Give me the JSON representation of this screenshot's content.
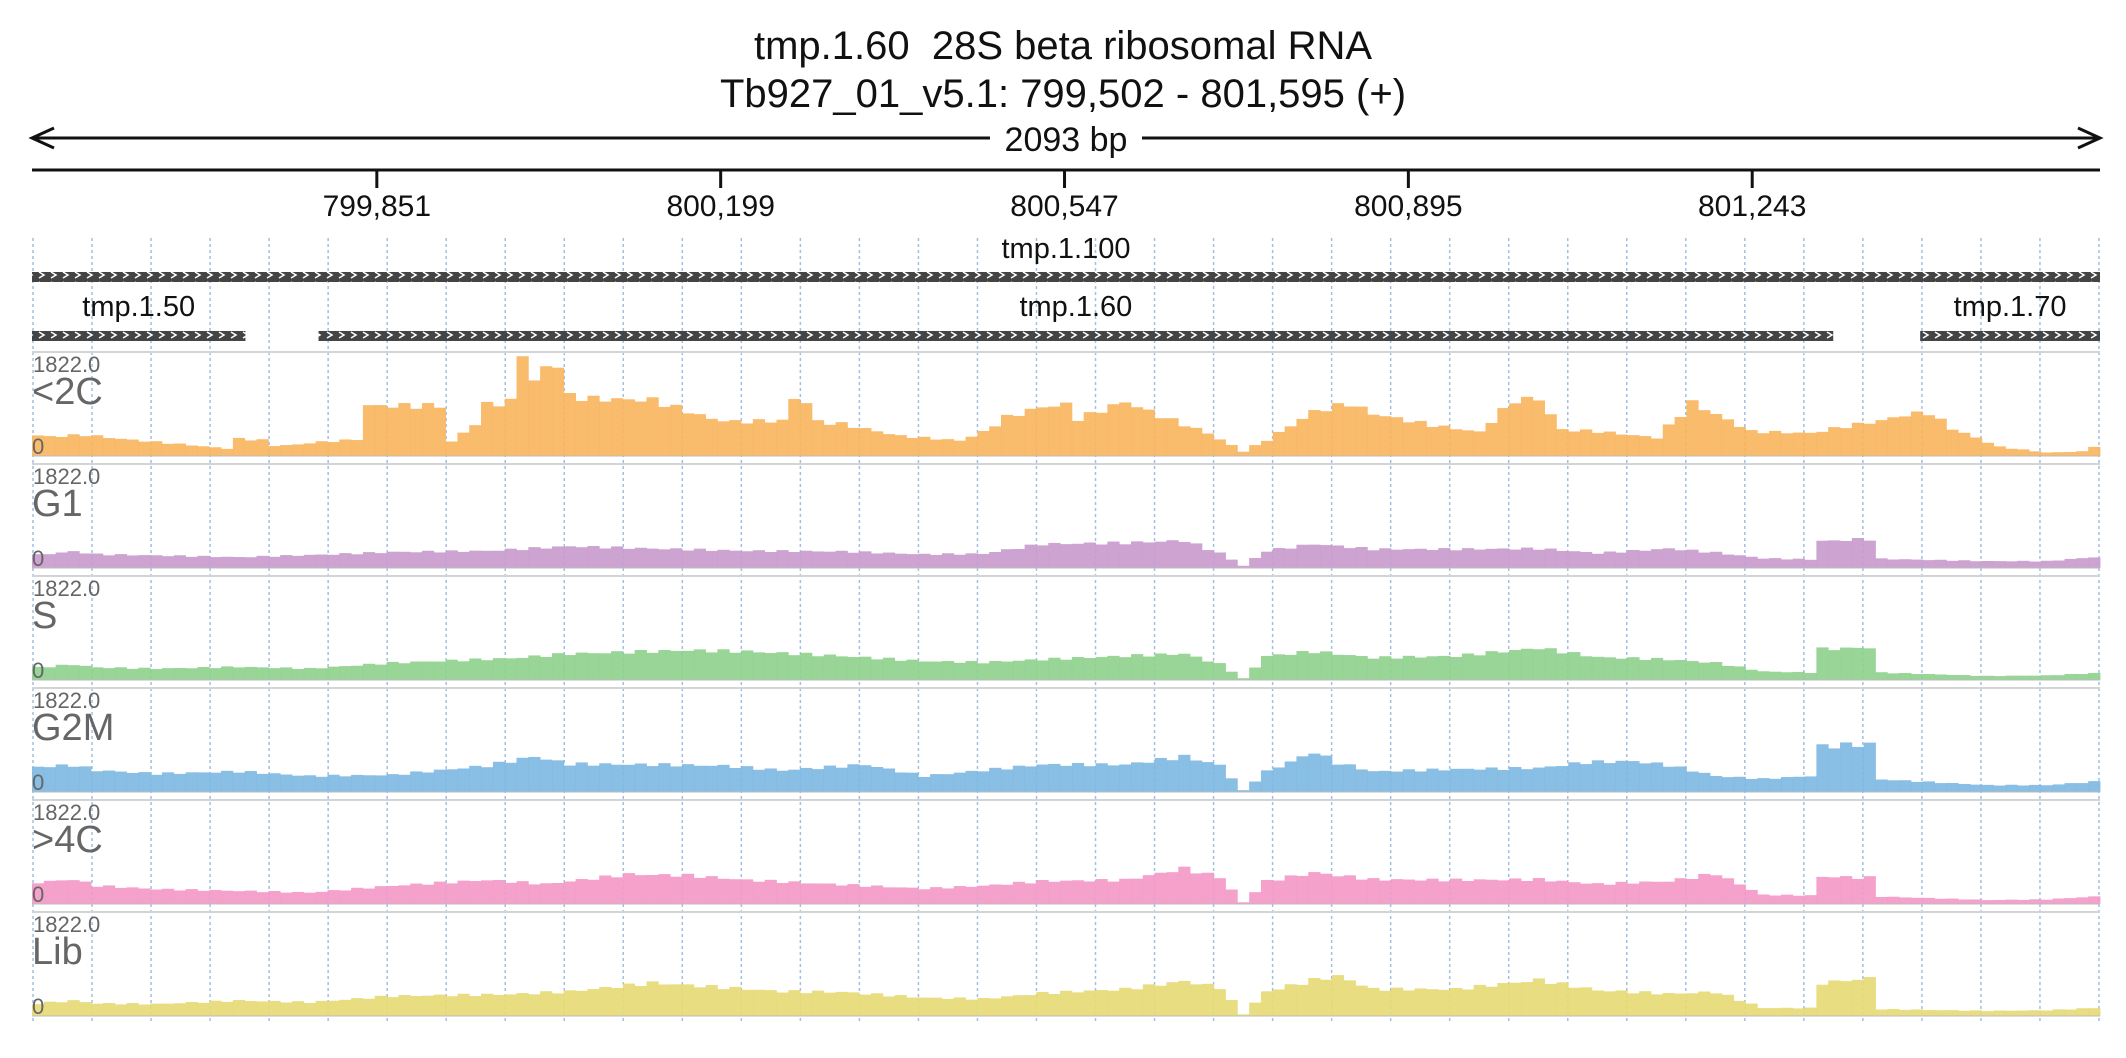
{
  "header": {
    "title": "tmp.1.60  28S beta ribosomal RNA",
    "location": "Tb927_01_v5.1: 799,502 - 801,595 (+)",
    "span_label": "2093 bp"
  },
  "chart_data": {
    "type": "area",
    "x_start": 799502,
    "x_end": 801595,
    "x_ticks": [
      {
        "pos": 799851,
        "label": "799,851"
      },
      {
        "pos": 800199,
        "label": "800,199"
      },
      {
        "pos": 800547,
        "label": "800,547"
      },
      {
        "pos": 800895,
        "label": "800,895"
      },
      {
        "pos": 801243,
        "label": "801,243"
      }
    ],
    "genes": [
      {
        "name": "tmp.1.100",
        "start": 799502,
        "end": 801595,
        "strand": "+"
      },
      {
        "name": "tmp.1.50",
        "start": 799502,
        "end": 799718,
        "strand": "+"
      },
      {
        "name": "tmp.1.60",
        "start": 799792,
        "end": 801325,
        "strand": "+"
      },
      {
        "name": "tmp.1.70",
        "start": 801413,
        "end": 801595,
        "strand": "+"
      }
    ],
    "ylim": [
      0,
      1822.0
    ],
    "y_max_label": "1822.0",
    "y_min_label": "0",
    "bin_count": 175,
    "series": [
      {
        "name": "<2C",
        "color": "#f9b55f",
        "anchors": [
          [
            0,
            360
          ],
          [
            1,
            340
          ],
          [
            4,
            370
          ],
          [
            7,
            300
          ],
          [
            13,
            190
          ],
          [
            16,
            130
          ],
          [
            17,
            300
          ],
          [
            19,
            280
          ],
          [
            20,
            180
          ],
          [
            22,
            200
          ],
          [
            23,
            230
          ],
          [
            27,
            290
          ],
          [
            28,
            880
          ],
          [
            34,
            880
          ],
          [
            35,
            250
          ],
          [
            37,
            560
          ],
          [
            38,
            900
          ],
          [
            40,
            950
          ],
          [
            41,
            1822
          ],
          [
            42,
            1300
          ],
          [
            43,
            1560
          ],
          [
            44,
            1600
          ],
          [
            45,
            1050
          ],
          [
            47,
            1000
          ],
          [
            52,
            980
          ],
          [
            57,
            650
          ],
          [
            59,
            600
          ],
          [
            63,
            620
          ],
          [
            64,
            1000
          ],
          [
            65,
            950
          ],
          [
            66,
            600
          ],
          [
            68,
            560
          ],
          [
            73,
            350
          ],
          [
            78,
            270
          ],
          [
            80,
            420
          ],
          [
            82,
            680
          ],
          [
            85,
            860
          ],
          [
            87,
            900
          ],
          [
            88,
            650
          ],
          [
            92,
            950
          ],
          [
            95,
            700
          ],
          [
            99,
            400
          ],
          [
            102,
            80
          ],
          [
            104,
            280
          ],
          [
            108,
            780
          ],
          [
            111,
            920
          ],
          [
            113,
            740
          ],
          [
            118,
            540
          ],
          [
            122,
            420
          ],
          [
            125,
            980
          ],
          [
            127,
            1000
          ],
          [
            129,
            460
          ],
          [
            132,
            430
          ],
          [
            137,
            320
          ],
          [
            140,
            930
          ],
          [
            145,
            430
          ],
          [
            150,
            400
          ],
          [
            153,
            520
          ],
          [
            156,
            620
          ],
          [
            158,
            720
          ],
          [
            160,
            760
          ],
          [
            162,
            480
          ],
          [
            166,
            160
          ],
          [
            170,
            60
          ],
          [
            173,
            80
          ],
          [
            174,
            170
          ]
        ]
      },
      {
        "name": "G1",
        "color": "#c99ccd",
        "anchors": [
          [
            0,
            230
          ],
          [
            3,
            290
          ],
          [
            5,
            240
          ],
          [
            10,
            220
          ],
          [
            17,
            190
          ],
          [
            25,
            240
          ],
          [
            30,
            280
          ],
          [
            38,
            300
          ],
          [
            45,
            380
          ],
          [
            52,
            340
          ],
          [
            60,
            300
          ],
          [
            68,
            290
          ],
          [
            75,
            240
          ],
          [
            80,
            250
          ],
          [
            85,
            420
          ],
          [
            92,
            440
          ],
          [
            97,
            480
          ],
          [
            100,
            260
          ],
          [
            102,
            40
          ],
          [
            104,
            300
          ],
          [
            108,
            420
          ],
          [
            113,
            330
          ],
          [
            120,
            330
          ],
          [
            127,
            340
          ],
          [
            132,
            260
          ],
          [
            138,
            340
          ],
          [
            142,
            270
          ],
          [
            146,
            170
          ],
          [
            150,
            150
          ],
          [
            151,
            470
          ],
          [
            155,
            510
          ],
          [
            156,
            160
          ],
          [
            165,
            120
          ],
          [
            170,
            120
          ],
          [
            174,
            190
          ]
        ]
      },
      {
        "name": "S",
        "color": "#8fd18e",
        "anchors": [
          [
            0,
            220
          ],
          [
            3,
            270
          ],
          [
            5,
            220
          ],
          [
            10,
            200
          ],
          [
            17,
            230
          ],
          [
            23,
            200
          ],
          [
            30,
            300
          ],
          [
            40,
            380
          ],
          [
            45,
            460
          ],
          [
            55,
            520
          ],
          [
            60,
            500
          ],
          [
            68,
            420
          ],
          [
            75,
            330
          ],
          [
            80,
            310
          ],
          [
            85,
            360
          ],
          [
            92,
            420
          ],
          [
            97,
            460
          ],
          [
            100,
            280
          ],
          [
            102,
            30
          ],
          [
            104,
            420
          ],
          [
            108,
            500
          ],
          [
            113,
            390
          ],
          [
            120,
            420
          ],
          [
            127,
            560
          ],
          [
            132,
            400
          ],
          [
            138,
            360
          ],
          [
            142,
            300
          ],
          [
            146,
            150
          ],
          [
            150,
            130
          ],
          [
            151,
            540
          ],
          [
            155,
            570
          ],
          [
            156,
            130
          ],
          [
            165,
            70
          ],
          [
            170,
            80
          ],
          [
            174,
            120
          ]
        ]
      },
      {
        "name": "G2M",
        "color": "#7fb8e3",
        "anchors": [
          [
            0,
            440
          ],
          [
            3,
            470
          ],
          [
            5,
            380
          ],
          [
            10,
            320
          ],
          [
            17,
            360
          ],
          [
            23,
            280
          ],
          [
            30,
            300
          ],
          [
            38,
            460
          ],
          [
            42,
            620
          ],
          [
            45,
            490
          ],
          [
            52,
            480
          ],
          [
            58,
            460
          ],
          [
            63,
            380
          ],
          [
            70,
            480
          ],
          [
            75,
            280
          ],
          [
            80,
            380
          ],
          [
            85,
            480
          ],
          [
            92,
            480
          ],
          [
            97,
            620
          ],
          [
            100,
            470
          ],
          [
            102,
            30
          ],
          [
            104,
            360
          ],
          [
            108,
            700
          ],
          [
            110,
            510
          ],
          [
            113,
            360
          ],
          [
            120,
            400
          ],
          [
            127,
            420
          ],
          [
            131,
            520
          ],
          [
            135,
            540
          ],
          [
            138,
            470
          ],
          [
            142,
            280
          ],
          [
            146,
            230
          ],
          [
            150,
            280
          ],
          [
            151,
            800
          ],
          [
            155,
            840
          ],
          [
            156,
            220
          ],
          [
            165,
            120
          ],
          [
            170,
            120
          ],
          [
            174,
            180
          ]
        ]
      },
      {
        "name": ">4C",
        "color": "#f39ac8",
        "anchors": [
          [
            0,
            380
          ],
          [
            3,
            430
          ],
          [
            5,
            320
          ],
          [
            10,
            260
          ],
          [
            17,
            230
          ],
          [
            23,
            200
          ],
          [
            30,
            320
          ],
          [
            38,
            420
          ],
          [
            43,
            350
          ],
          [
            50,
            520
          ],
          [
            55,
            500
          ],
          [
            60,
            420
          ],
          [
            68,
            340
          ],
          [
            75,
            270
          ],
          [
            80,
            320
          ],
          [
            85,
            400
          ],
          [
            92,
            420
          ],
          [
            97,
            620
          ],
          [
            100,
            470
          ],
          [
            102,
            30
          ],
          [
            104,
            400
          ],
          [
            108,
            550
          ],
          [
            113,
            430
          ],
          [
            120,
            420
          ],
          [
            127,
            430
          ],
          [
            132,
            350
          ],
          [
            138,
            400
          ],
          [
            142,
            530
          ],
          [
            146,
            160
          ],
          [
            150,
            150
          ],
          [
            151,
            480
          ],
          [
            155,
            460
          ],
          [
            156,
            130
          ],
          [
            165,
            70
          ],
          [
            170,
            80
          ],
          [
            174,
            130
          ]
        ]
      },
      {
        "name": "Lib",
        "color": "#e6da76",
        "anchors": [
          [
            0,
            220
          ],
          [
            3,
            270
          ],
          [
            5,
            220
          ],
          [
            10,
            210
          ],
          [
            17,
            270
          ],
          [
            23,
            240
          ],
          [
            30,
            350
          ],
          [
            40,
            380
          ],
          [
            45,
            430
          ],
          [
            52,
            580
          ],
          [
            58,
            500
          ],
          [
            63,
            430
          ],
          [
            68,
            420
          ],
          [
            75,
            320
          ],
          [
            80,
            300
          ],
          [
            85,
            400
          ],
          [
            92,
            470
          ],
          [
            97,
            610
          ],
          [
            100,
            500
          ],
          [
            102,
            30
          ],
          [
            104,
            430
          ],
          [
            108,
            630
          ],
          [
            110,
            700
          ],
          [
            113,
            470
          ],
          [
            120,
            470
          ],
          [
            127,
            630
          ],
          [
            132,
            450
          ],
          [
            138,
            390
          ],
          [
            142,
            420
          ],
          [
            146,
            140
          ],
          [
            150,
            140
          ],
          [
            151,
            580
          ],
          [
            155,
            660
          ],
          [
            156,
            120
          ],
          [
            165,
            90
          ],
          [
            170,
            100
          ],
          [
            174,
            140
          ]
        ]
      }
    ]
  }
}
